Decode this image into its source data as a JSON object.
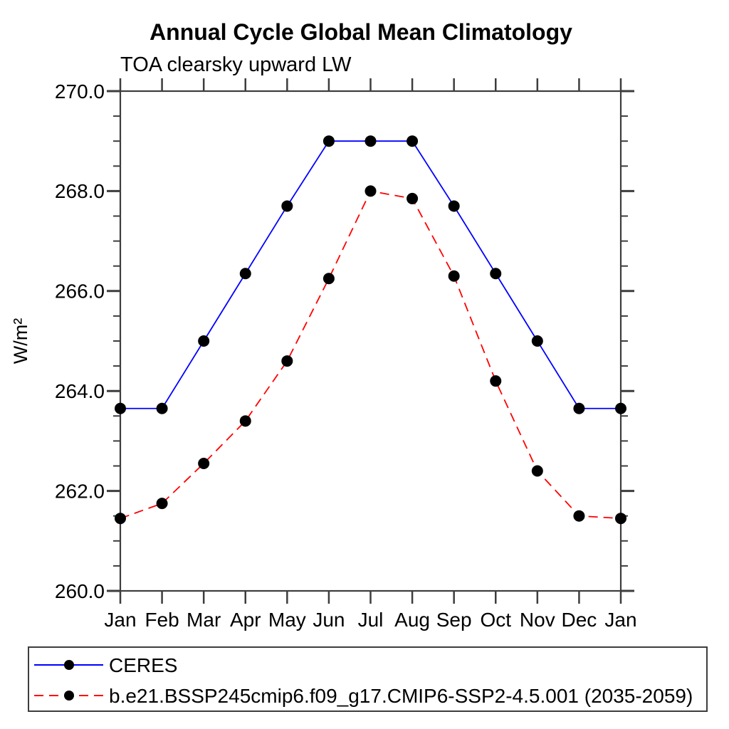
{
  "chart_data": {
    "type": "line",
    "title": "Annual Cycle Global Mean Climatology",
    "subtitle": "TOA clearsky upward LW",
    "ylabel": "W/m²",
    "xlabel": "",
    "categories": [
      "Jan",
      "Feb",
      "Mar",
      "Apr",
      "May",
      "Jun",
      "Jul",
      "Aug",
      "Sep",
      "Oct",
      "Nov",
      "Dec",
      "Jan"
    ],
    "ylim": [
      260.0,
      270.0
    ],
    "ytick_major_step": 2.0,
    "ytick_minor_step": 0.5,
    "ytick_labels": [
      "260.0",
      "262.0",
      "264.0",
      "266.0",
      "268.0",
      "270.0"
    ],
    "grid": false,
    "legend_position": "bottom-left",
    "series": [
      {
        "name": "CERES",
        "color": "#0000ff",
        "line_style": "solid",
        "marker": "filled-circle",
        "marker_color": "#000000",
        "values": [
          263.65,
          263.65,
          265.0,
          266.35,
          267.7,
          269.0,
          269.0,
          269.0,
          267.7,
          266.35,
          265.0,
          263.65,
          263.65
        ]
      },
      {
        "name": "b.e21.BSSP245cmip6.f09_g17.CMIP6-SSP2-4.5.001 (2035-2059)",
        "color": "#ff0000",
        "line_style": "dashed",
        "marker": "filled-circle",
        "marker_color": "#000000",
        "values": [
          261.45,
          261.75,
          262.55,
          263.4,
          264.6,
          266.25,
          268.0,
          267.85,
          266.3,
          264.2,
          262.4,
          261.5,
          261.45
        ]
      }
    ],
    "colors": {
      "axis": "#3d3d3d",
      "text": "#000000",
      "background": "#ffffff"
    }
  }
}
